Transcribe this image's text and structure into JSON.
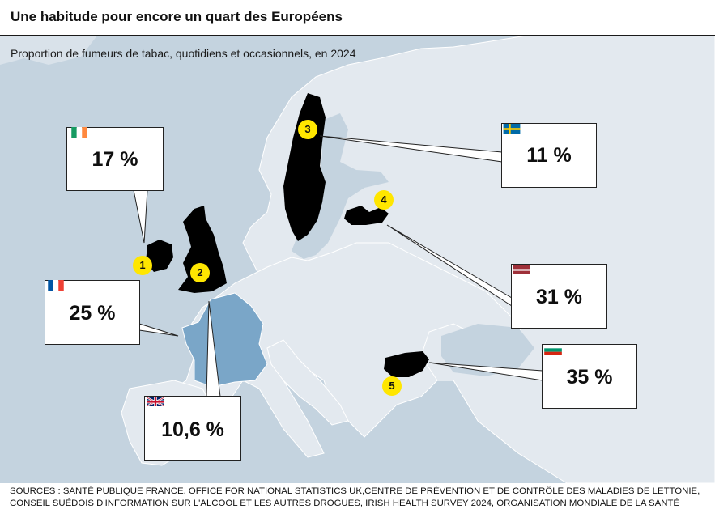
{
  "title": "Une habitude pour encore un quart des Européens",
  "subtitle": "Proportion de fumeurs de tabac, quotidiens et occasionnels, en 2024",
  "sources": [
    "SOURCES : SANTÉ PUBLIQUE FRANCE, OFFICE FOR NATIONAL STATISTICS UK,CENTRE DE PRÉVENTION ET DE CONTRÔLE DES MALADIES DE LETTONIE,",
    "CONSEIL SUÉDOIS D'INFORMATION SUR L'ALCOOL ET LES AUTRES DROGUES, IRISH HEALTH SURVEY 2024, ORGANISATION MONDIALE DE LA SANTÉ"
  ],
  "colors": {
    "sea": "#c4d3df",
    "land": "#e3e9ef",
    "border": "#ffffff",
    "highlight_france": "#7aa6c8",
    "highlight_other": "#000000",
    "marker": "#ffe600"
  },
  "markers": [
    {
      "number": "1",
      "country": "Irlande",
      "value": "17 %",
      "flag": "ireland-flag-icon"
    },
    {
      "number": "2",
      "country": "Royaume-Uni",
      "value": "10,6 %",
      "flag": "uk-flag-icon"
    },
    {
      "number": "3",
      "country": "Suède",
      "value": "11 %",
      "flag": "sweden-flag-icon"
    },
    {
      "number": "4",
      "country": "Lettonie",
      "value": "31 %",
      "flag": "latvia-flag-icon"
    },
    {
      "number": "5",
      "country": "Bulgarie",
      "value": "35 %",
      "flag": "bulgaria-flag-icon"
    }
  ],
  "france": {
    "value": "25 %",
    "flag": "france-flag-icon"
  }
}
